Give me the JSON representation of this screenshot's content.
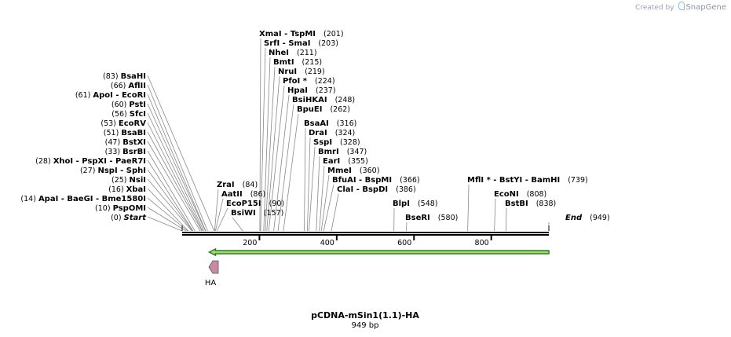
{
  "branding": {
    "prefix": "Created by",
    "name": "SnapGene"
  },
  "plasmid": {
    "name": "pCDNA-mSin1(1.1)-HA",
    "length_label": "949 bp",
    "length": 949
  },
  "scale_ticks": [
    {
      "value": 200,
      "label": "200"
    },
    {
      "value": 400,
      "label": "400"
    },
    {
      "value": 600,
      "label": "600"
    },
    {
      "value": 800,
      "label": "800"
    }
  ],
  "feature": {
    "name": "HA",
    "strand": "reverse",
    "color": "#c98aa3"
  },
  "orf": {
    "start": 70,
    "end": 949,
    "fill": "#a7d96b",
    "stroke": "#2f7a2a"
  },
  "site_groups": [
    {
      "names": [
        "Start"
      ],
      "pos": 0,
      "pos_label": "(0)",
      "italic": true,
      "pos_first": true
    },
    {
      "names": [
        "PspOMI"
      ],
      "pos": 10,
      "pos_label": "(10)",
      "pos_first": true
    },
    {
      "names": [
        "ApaI",
        "BaeGI",
        "Bme1580I"
      ],
      "pos": 14,
      "pos_label": "(14)",
      "pos_first": true
    },
    {
      "names": [
        "XbaI"
      ],
      "pos": 16,
      "pos_label": "(16)",
      "pos_first": true
    },
    {
      "names": [
        "NsiI"
      ],
      "pos": 25,
      "pos_label": "(25)",
      "pos_first": true
    },
    {
      "names": [
        "NspI",
        "SphI"
      ],
      "pos": 27,
      "pos_label": "(27)",
      "pos_first": true
    },
    {
      "names": [
        "XhoI",
        "PspXI",
        "PaeR7I"
      ],
      "pos": 28,
      "pos_label": "(28)",
      "pos_first": true
    },
    {
      "names": [
        "BsrBI"
      ],
      "pos": 33,
      "pos_label": "(33)",
      "pos_first": true
    },
    {
      "names": [
        "BstXI"
      ],
      "pos": 47,
      "pos_label": "(47)",
      "pos_first": true
    },
    {
      "names": [
        "BsaBI"
      ],
      "pos": 51,
      "pos_label": "(51)",
      "pos_first": true
    },
    {
      "names": [
        "EcoRV"
      ],
      "pos": 53,
      "pos_label": "(53)",
      "pos_first": true
    },
    {
      "names": [
        "SfcI"
      ],
      "pos": 56,
      "pos_label": "(56)",
      "pos_first": true
    },
    {
      "names": [
        "PstI"
      ],
      "pos": 60,
      "pos_label": "(60)",
      "pos_first": true
    },
    {
      "names": [
        "ApoI",
        "EcoRI"
      ],
      "pos": 61,
      "pos_label": "(61)",
      "pos_first": true
    },
    {
      "names": [
        "AflII"
      ],
      "pos": 66,
      "pos_label": "(66)",
      "pos_first": true
    },
    {
      "names": [
        "BsaHI"
      ],
      "pos": 83,
      "pos_label": "(83)",
      "pos_first": true
    },
    {
      "names": [
        "ZraI"
      ],
      "pos": 84,
      "pos_label": "(84)"
    },
    {
      "names": [
        "AatII"
      ],
      "pos": 86,
      "pos_label": "(86)"
    },
    {
      "names": [
        "EcoP15I"
      ],
      "pos": 90,
      "pos_label": "(90)"
    },
    {
      "names": [
        "BsiWI"
      ],
      "pos": 157,
      "pos_label": "(157)"
    },
    {
      "names": [
        "XmaI",
        "TspMI"
      ],
      "pos": 201,
      "pos_label": "(201)"
    },
    {
      "names": [
        "SrfI",
        "SmaI"
      ],
      "pos": 203,
      "pos_label": "(203)"
    },
    {
      "names": [
        "NheI"
      ],
      "pos": 211,
      "pos_label": "(211)"
    },
    {
      "names": [
        "BmtI"
      ],
      "pos": 215,
      "pos_label": "(215)"
    },
    {
      "names": [
        "NruI"
      ],
      "pos": 219,
      "pos_label": "(219)"
    },
    {
      "names": [
        "PfoI *"
      ],
      "pos": 224,
      "pos_label": "(224)"
    },
    {
      "names": [
        "HpaI"
      ],
      "pos": 237,
      "pos_label": "(237)"
    },
    {
      "names": [
        "BsiHKAI"
      ],
      "pos": 248,
      "pos_label": "(248)"
    },
    {
      "names": [
        "BpuEI"
      ],
      "pos": 262,
      "pos_label": "(262)"
    },
    {
      "names": [
        "BsaAI"
      ],
      "pos": 316,
      "pos_label": "(316)"
    },
    {
      "names": [
        "DraI"
      ],
      "pos": 324,
      "pos_label": "(324)"
    },
    {
      "names": [
        "SspI"
      ],
      "pos": 328,
      "pos_label": "(328)"
    },
    {
      "names": [
        "BmrI"
      ],
      "pos": 347,
      "pos_label": "(347)"
    },
    {
      "names": [
        "EarI"
      ],
      "pos": 355,
      "pos_label": "(355)"
    },
    {
      "names": [
        "MmeI"
      ],
      "pos": 360,
      "pos_label": "(360)"
    },
    {
      "names": [
        "BfuAI",
        "BspMI"
      ],
      "pos": 366,
      "pos_label": "(366)"
    },
    {
      "names": [
        "ClaI",
        "BspDI"
      ],
      "pos": 386,
      "pos_label": "(386)"
    },
    {
      "names": [
        "BlpI"
      ],
      "pos": 548,
      "pos_label": "(548)"
    },
    {
      "names": [
        "BseRI"
      ],
      "pos": 580,
      "pos_label": "(580)"
    },
    {
      "names": [
        "MflI *",
        "BstYI",
        "BamHI"
      ],
      "pos": 739,
      "pos_label": "(739)"
    },
    {
      "names": [
        "EcoNI"
      ],
      "pos": 808,
      "pos_label": "(808)"
    },
    {
      "names": [
        "BstBI"
      ],
      "pos": 838,
      "pos_label": "(838)"
    },
    {
      "names": [
        "End"
      ],
      "pos": 949,
      "pos_label": "(949)",
      "italic": true
    }
  ]
}
